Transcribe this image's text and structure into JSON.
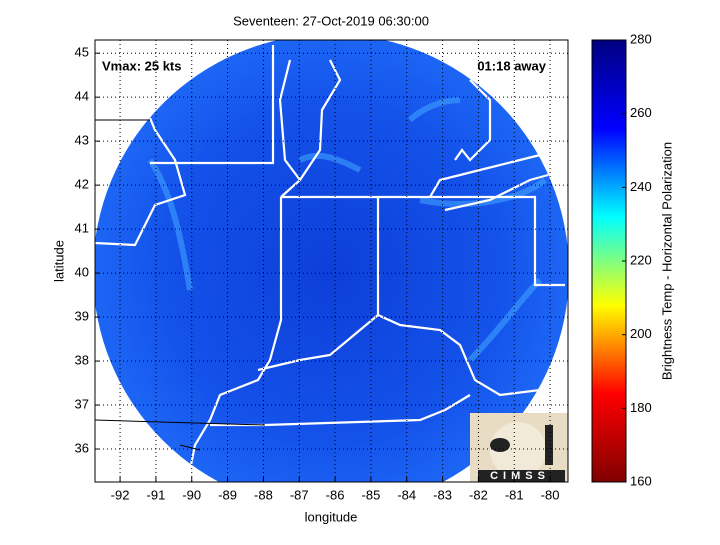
{
  "chart_data": {
    "type": "map",
    "title": "Seventeen: 27-Oct-2019 06:30:00",
    "xlabel": "longitude",
    "ylabel": "latitude",
    "xlim": [
      -92.7,
      -79.5
    ],
    "xticks": [
      -92,
      -91,
      -90,
      -89,
      -88,
      -87,
      -86,
      -85,
      -84,
      -83,
      -82,
      -81,
      -80
    ],
    "ylim": [
      35.25,
      45.3
    ],
    "yticks": [
      36,
      37,
      38,
      39,
      40,
      41,
      42,
      43,
      44,
      45
    ],
    "grid": true,
    "annotations": [
      "Vmax: 25 kts",
      "01:18 away"
    ],
    "colorbar": {
      "label": "Brightness Temp - Horizontal Polarization",
      "lim": [
        160,
        280
      ],
      "ticks": [
        160,
        180,
        200,
        220,
        240,
        260,
        280
      ],
      "colormap": "jet"
    },
    "logo": "CIMSS"
  }
}
